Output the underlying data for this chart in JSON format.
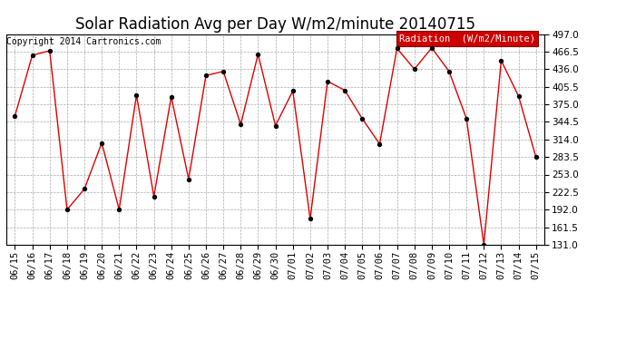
{
  "title": "Solar Radiation Avg per Day W/m2/minute 20140715",
  "copyright": "Copyright 2014 Cartronics.com",
  "legend_label": "Radiation  (W/m2/Minute)",
  "dates": [
    "06/15",
    "06/16",
    "06/17",
    "06/18",
    "06/19",
    "06/20",
    "06/21",
    "06/22",
    "06/23",
    "06/24",
    "06/25",
    "06/26",
    "06/27",
    "06/28",
    "06/29",
    "06/30",
    "07/01",
    "07/02",
    "07/03",
    "07/04",
    "07/05",
    "07/06",
    "07/07",
    "07/08",
    "07/09",
    "07/10",
    "07/11",
    "07/12",
    "07/13",
    "07/14",
    "07/15"
  ],
  "values": [
    355,
    460,
    468,
    192,
    228,
    308,
    192,
    391,
    215,
    388,
    245,
    425,
    432,
    340,
    462,
    338,
    398,
    176,
    415,
    399,
    350,
    306,
    472,
    436,
    473,
    432,
    350,
    131,
    451,
    389,
    283
  ],
  "ylim": [
    131.0,
    497.0
  ],
  "yticks": [
    131.0,
    161.5,
    192.0,
    222.5,
    253.0,
    283.5,
    314.0,
    344.5,
    375.0,
    405.5,
    436.0,
    466.5,
    497.0
  ],
  "line_color": "#dd0000",
  "marker_color": "#000000",
  "bg_color": "#ffffff",
  "grid_color": "#aaaaaa",
  "legend_bg": "#cc0000",
  "legend_text_color": "#ffffff",
  "title_fontsize": 12,
  "copyright_fontsize": 7,
  "tick_fontsize": 7.5,
  "legend_fontsize": 7.5
}
